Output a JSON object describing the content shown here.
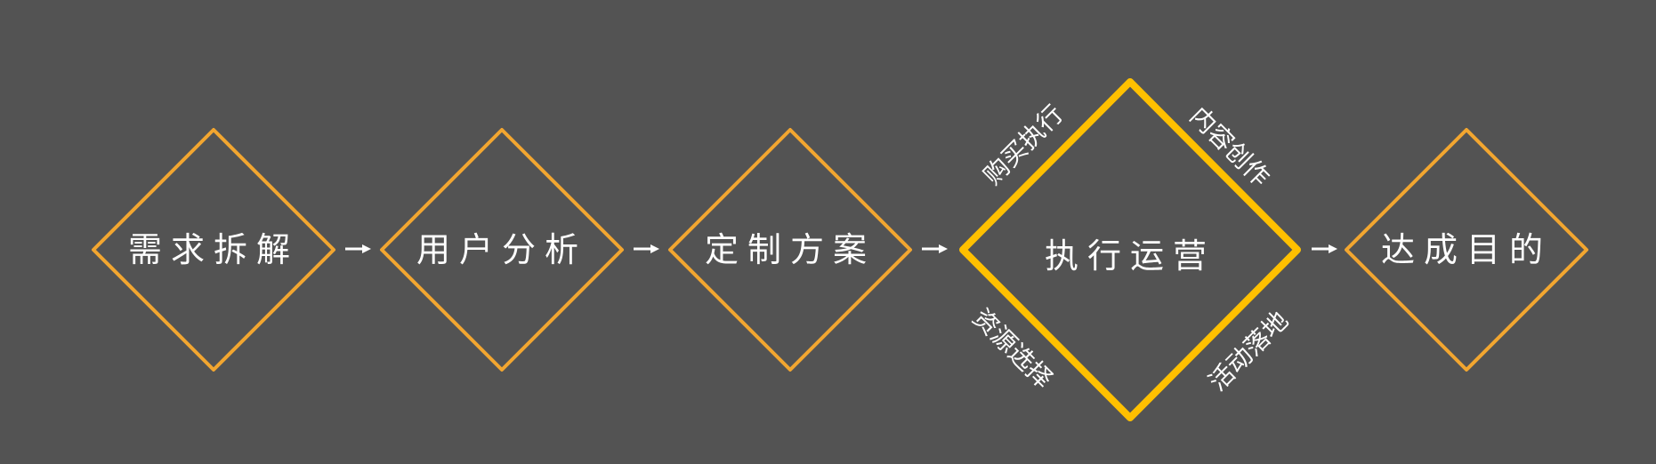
{
  "colors": {
    "background": "#535353",
    "diamond_stroke": "#F2A630",
    "highlight_stroke": "#FFC000",
    "text": "#FFFFFF",
    "arrow": "#FFFFFF"
  },
  "steps": [
    {
      "label": "需求拆解"
    },
    {
      "label": "用户分析"
    },
    {
      "label": "定制方案"
    },
    {
      "label": "执行运营",
      "highlighted": true
    },
    {
      "label": "达成目的"
    }
  ],
  "highlight_edges": {
    "top_left": "购买执行",
    "top_right": "内容创作",
    "bottom_left": "资源选择",
    "bottom_right": "活动落地"
  }
}
